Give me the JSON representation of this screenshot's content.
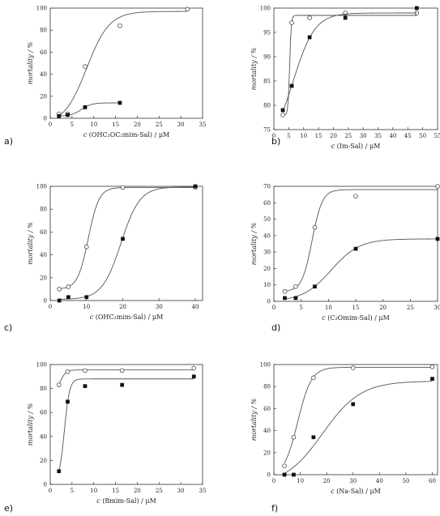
{
  "chart_data": [
    {
      "id": "a",
      "type": "scatter",
      "panel_label": "a)",
      "xlabel_var": "c",
      "xlabel_rest": " (OHC₂OC₂mim-Sal) / μM",
      "ylabel": "mortality / %",
      "xlim": [
        0,
        35
      ],
      "ylim": [
        0,
        100
      ],
      "xticks": [
        0,
        5,
        10,
        15,
        20,
        25,
        30,
        35
      ],
      "yticks": [
        0,
        20,
        40,
        60,
        80,
        100
      ],
      "series": [
        {
          "marker": "open-circle",
          "x": [
            2,
            4,
            8,
            16,
            31.5
          ],
          "y": [
            4,
            4,
            47,
            84,
            99
          ]
        },
        {
          "marker": "filled-square",
          "x": [
            2,
            4,
            8,
            16
          ],
          "y": [
            2,
            3,
            10,
            14
          ]
        }
      ]
    },
    {
      "id": "b",
      "type": "scatter",
      "panel_label": "b)",
      "xlabel_var": "c",
      "xlabel_rest": " (Im-Sal) / μM",
      "ylabel": "mortality / %",
      "xlim": [
        0,
        55
      ],
      "ylim": [
        75,
        100
      ],
      "xticks": [
        0,
        5,
        10,
        15,
        20,
        25,
        30,
        35,
        40,
        45,
        50,
        55
      ],
      "yticks": [
        75,
        80,
        85,
        90,
        95,
        100
      ],
      "series": [
        {
          "marker": "open-circle",
          "x": [
            3,
            6,
            12,
            24,
            48
          ],
          "y": [
            78,
            97,
            98,
            99,
            99
          ]
        },
        {
          "marker": "filled-square",
          "x": [
            3,
            6,
            12,
            24,
            48
          ],
          "y": [
            79,
            84,
            94,
            98,
            100
          ]
        }
      ]
    },
    {
      "id": "c",
      "type": "scatter",
      "panel_label": "c)",
      "xlabel_var": "c",
      "xlabel_rest": " (OHC₂mim-Sal) / μM",
      "ylabel": "mortality / %",
      "xlim": [
        0,
        42
      ],
      "ylim": [
        0,
        100
      ],
      "xticks": [
        0,
        10,
        20,
        30,
        40
      ],
      "yticks": [
        0,
        20,
        40,
        60,
        80,
        100
      ],
      "series": [
        {
          "marker": "open-circle",
          "x": [
            2.5,
            5,
            10,
            20,
            40
          ],
          "y": [
            10,
            12,
            47,
            99,
            99
          ]
        },
        {
          "marker": "filled-square",
          "x": [
            2.5,
            5,
            10,
            20,
            40
          ],
          "y": [
            0,
            3,
            3,
            54,
            100
          ]
        }
      ]
    },
    {
      "id": "d",
      "type": "scatter",
      "panel_label": "d)",
      "xlabel_var": "c",
      "xlabel_rest": " (C₂Omim-Sal) / μM",
      "ylabel": "mortality / %",
      "xlim": [
        0,
        30
      ],
      "ylim": [
        0,
        70
      ],
      "xticks": [
        0,
        5,
        10,
        15,
        20,
        25,
        30
      ],
      "yticks": [
        0,
        10,
        20,
        30,
        40,
        50,
        60,
        70
      ],
      "series": [
        {
          "marker": "open-circle",
          "x": [
            2,
            4,
            7.5,
            15,
            30
          ],
          "y": [
            6,
            9,
            45,
            64,
            70
          ]
        },
        {
          "marker": "filled-square",
          "x": [
            2,
            4,
            7.5,
            15,
            30
          ],
          "y": [
            2,
            2,
            9,
            32,
            38
          ]
        }
      ]
    },
    {
      "id": "e",
      "type": "scatter",
      "panel_label": "e)",
      "xlabel_var": "c",
      "xlabel_rest": " (Bmim-Sal) / μM",
      "ylabel": "mortality / %",
      "xlim": [
        0,
        35
      ],
      "ylim": [
        0,
        100
      ],
      "xticks": [
        0,
        5,
        10,
        15,
        20,
        25,
        30,
        35
      ],
      "yticks": [
        0,
        20,
        40,
        60,
        80,
        100
      ],
      "series": [
        {
          "marker": "open-circle",
          "x": [
            2,
            4,
            8,
            16.5,
            33
          ],
          "y": [
            83,
            94,
            95,
            95,
            97
          ]
        },
        {
          "marker": "filled-square",
          "x": [
            2,
            4,
            8,
            16.5,
            33
          ],
          "y": [
            11,
            69,
            82,
            83,
            90
          ]
        }
      ]
    },
    {
      "id": "f",
      "type": "scatter",
      "panel_label": "f)",
      "xlabel_var": "c",
      "xlabel_rest": " (Na-Sal) / μM",
      "ylabel": "mortality / %",
      "xlim": [
        0,
        62
      ],
      "ylim": [
        0,
        100
      ],
      "xticks": [
        0,
        10,
        20,
        30,
        40,
        50,
        60
      ],
      "yticks": [
        0,
        20,
        40,
        60,
        80,
        100
      ],
      "series": [
        {
          "marker": "open-circle",
          "x": [
            4,
            7.5,
            15,
            30,
            60
          ],
          "y": [
            8,
            34,
            88,
            97,
            98
          ]
        },
        {
          "marker": "filled-square",
          "x": [
            4,
            7.5,
            15,
            30,
            60
          ],
          "y": [
            0,
            0,
            34,
            64,
            87
          ]
        }
      ]
    }
  ]
}
